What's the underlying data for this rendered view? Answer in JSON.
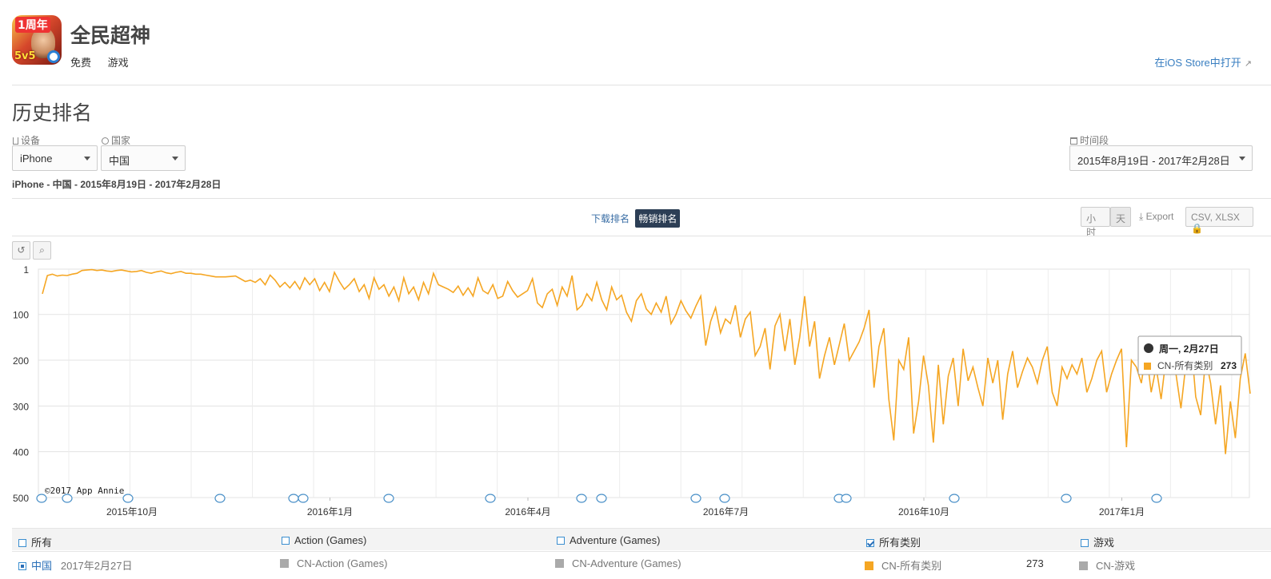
{
  "app": {
    "name": "全民超神",
    "price": "免费",
    "category": "游戏",
    "store_link": "在iOS Store中打开",
    "icon_text_top": "1周年",
    "icon_text_bottom": "5v5"
  },
  "section_title": "历史排名",
  "filters": {
    "device_label": "设备",
    "device_value": "iPhone",
    "country_label": "国家",
    "country_value": "中国",
    "period_label": "时间段",
    "period_value": "2015年8月19日 - 2017年2月28日"
  },
  "subtitle": "iPhone - 中国 - 2015年8月19日 - 2017年2月28日",
  "metric_tabs": [
    "下载排名",
    "畅销排名"
  ],
  "granularity": [
    "小时",
    "天"
  ],
  "export_label": "Export",
  "export_formats": "CSV, XLSX",
  "tooltip": {
    "date": "周一, 2月27日",
    "series": "CN-所有类别",
    "value": "273"
  },
  "copyright": "©2017 App Annie",
  "legend": {
    "categories": [
      {
        "label": "所有",
        "checked": false
      },
      {
        "label": "Action (Games)",
        "checked": false
      },
      {
        "label": "Adventure (Games)",
        "checked": false
      },
      {
        "label": "所有类别",
        "checked": true
      },
      {
        "label": "游戏",
        "checked": false
      }
    ],
    "row2": {
      "country": "中国",
      "date": "2017年2月27日",
      "series": [
        "CN-Action (Games)",
        "CN-Adventure (Games)",
        "CN-所有类别",
        "CN-游戏"
      ],
      "value": "273"
    }
  },
  "colors": {
    "line": "#f5a623",
    "accent": "#2c3e55",
    "link": "#3a7fc1",
    "inactive_series": "#aaaaaa"
  },
  "chart_data": {
    "type": "line",
    "title": "",
    "xlabel": "",
    "ylabel": "",
    "y_inverted": true,
    "ylim": [
      1,
      500
    ],
    "y_ticks": [
      1,
      100,
      200,
      300,
      400,
      500
    ],
    "x_ticks": [
      "2015年10月",
      "2016年1月",
      "2016年4月",
      "2016年7月",
      "2016年10月",
      "2017年1月"
    ],
    "series": [
      {
        "name": "CN-所有类别",
        "x_start": "2015-08-19",
        "x_end": "2017-02-28",
        "values": [
          55,
          15,
          12,
          16,
          14,
          15,
          12,
          10,
          4,
          3,
          2,
          4,
          3,
          5,
          6,
          4,
          3,
          5,
          7,
          6,
          4,
          8,
          10,
          7,
          5,
          9,
          11,
          8,
          6,
          10,
          10,
          12,
          12,
          14,
          16,
          18,
          18,
          18,
          17,
          16,
          22,
          28,
          25,
          30,
          22,
          35,
          14,
          25,
          40,
          30,
          42,
          28,
          45,
          20,
          35,
          22,
          48,
          30,
          50,
          8,
          28,
          45,
          35,
          22,
          50,
          35,
          65,
          20,
          45,
          35,
          60,
          40,
          70,
          20,
          55,
          40,
          68,
          30,
          55,
          10,
          35,
          40,
          45,
          52,
          38,
          58,
          42,
          60,
          20,
          48,
          55,
          35,
          65,
          60,
          28,
          48,
          62,
          55,
          48,
          22,
          75,
          85,
          55,
          45,
          80,
          40,
          60,
          15,
          90,
          80,
          55,
          70,
          30,
          68,
          90,
          40,
          68,
          58,
          95,
          115,
          70,
          55,
          88,
          100,
          75,
          95,
          60,
          120,
          100,
          70,
          92,
          108,
          82,
          60,
          168,
          115,
          85,
          140,
          110,
          120,
          80,
          150,
          110,
          95,
          190,
          170,
          130,
          220,
          125,
          100,
          180,
          110,
          210,
          150,
          60,
          170,
          115,
          240,
          190,
          150,
          210,
          165,
          120,
          200,
          180,
          160,
          130,
          90,
          260,
          170,
          130,
          285,
          375,
          200,
          220,
          150,
          360,
          290,
          190,
          255,
          380,
          210,
          340,
          235,
          195,
          300,
          175,
          245,
          215,
          260,
          300,
          195,
          250,
          200,
          330,
          230,
          180,
          260,
          225,
          195,
          215,
          250,
          200,
          170,
          270,
          300,
          215,
          240,
          210,
          230,
          195,
          270,
          240,
          200,
          180,
          270,
          230,
          200,
          175,
          390,
          200,
          215,
          250,
          180,
          270,
          215,
          285,
          195,
          180,
          230,
          305,
          210,
          150,
          280,
          320,
          195,
          250,
          340,
          255,
          405,
          290,
          370,
          240,
          185,
          273
        ]
      }
    ]
  }
}
